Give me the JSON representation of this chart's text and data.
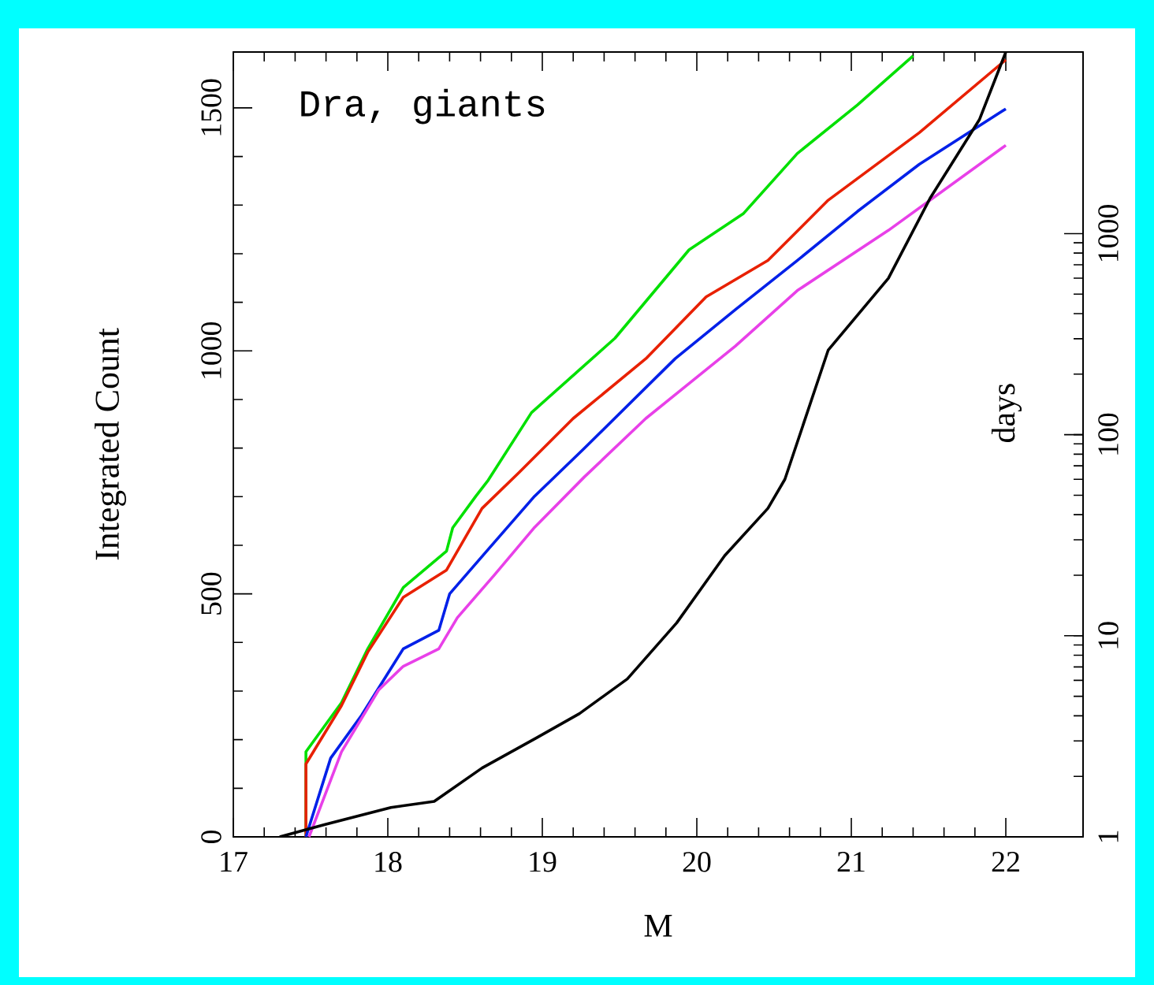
{
  "chart_data": {
    "type": "line",
    "xlabel": "M",
    "ylabel": "Integrated Count",
    "y2label": "days",
    "annotations": [
      "Dra, giants"
    ],
    "xlim": [
      17,
      22.5
    ],
    "xticks": [
      17,
      18,
      19,
      20,
      21,
      22
    ],
    "ylim": [
      0,
      1615
    ],
    "yticks": [
      0,
      500,
      1000,
      1500
    ],
    "y2lim": [
      1,
      8000
    ],
    "y2ticks": [
      1,
      10,
      100,
      1000
    ],
    "log": "y2",
    "grid": false,
    "legend": false,
    "marker": "none",
    "line_style": "solid",
    "series": [
      {
        "color": "#00e000",
        "x": [
          17.47,
          17.47,
          17.7,
          17.87,
          18.1,
          18.38,
          18.42,
          18.57,
          18.65,
          18.93,
          19.24,
          19.47,
          19.95,
          20.3,
          20.65,
          21.04,
          21.4
        ],
        "values": [
          0,
          175,
          276,
          387,
          513,
          588,
          636,
          701,
          734,
          873,
          961,
          1026,
          1208,
          1282,
          1406,
          1506,
          1607
        ]
      },
      {
        "color": "#e82000",
        "x": [
          17.47,
          17.47,
          17.7,
          17.87,
          18.1,
          18.38,
          18.61,
          18.85,
          19.2,
          19.67,
          20.06,
          20.46,
          20.85,
          21.44,
          22.0
        ],
        "values": [
          0,
          150,
          270,
          380,
          493,
          549,
          676,
          750,
          861,
          984,
          1111,
          1186,
          1310,
          1449,
          1599
        ]
      },
      {
        "color": "#0020e8",
        "x": [
          17.47,
          17.63,
          17.83,
          18.1,
          18.33,
          18.4,
          18.64,
          18.95,
          19.27,
          19.86,
          20.25,
          20.65,
          21.04,
          21.44,
          22.0
        ],
        "values": [
          0,
          162,
          250,
          387,
          425,
          500,
          588,
          701,
          799,
          984,
          1085,
          1186,
          1287,
          1384,
          1498
        ]
      },
      {
        "color": "#e840e8",
        "x": [
          17.49,
          17.7,
          17.94,
          18.1,
          18.33,
          18.45,
          18.69,
          18.95,
          19.27,
          19.67,
          20.25,
          20.65,
          21.24,
          22.0
        ],
        "values": [
          0,
          175,
          302,
          351,
          387,
          451,
          539,
          637,
          740,
          861,
          1010,
          1124,
          1248,
          1423
        ]
      },
      {
        "color": "#000000",
        "axis": "y2",
        "x": [
          17.3,
          17.59,
          18.02,
          18.3,
          18.61,
          18.96,
          19.24,
          19.55,
          19.87,
          20.18,
          20.46,
          20.57,
          20.85,
          21.24,
          21.51,
          21.83,
          22.0
        ],
        "values": [
          1,
          1.15,
          1.4,
          1.5,
          2.2,
          3.1,
          4.1,
          6.1,
          11.6,
          25,
          43,
          60,
          263,
          600,
          1500,
          3700,
          8000
        ]
      }
    ]
  }
}
